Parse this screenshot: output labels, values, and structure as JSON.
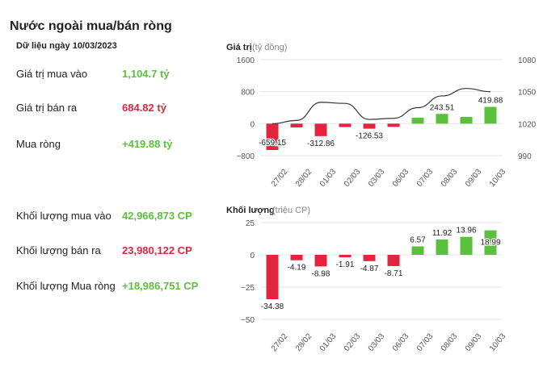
{
  "page": {
    "title": "Nước ngoài mua/bán ròng",
    "date_label": "Dữ liệu ngày 10/03/2023"
  },
  "stats": [
    {
      "label": "Giá trị mua vào",
      "value": "1,104.7 tỷ",
      "color": "#5bc13c"
    },
    {
      "label": "Giá trị bán ra",
      "value": "684.82 tỷ",
      "color": "#e2243f"
    },
    {
      "label": "Mua ròng",
      "value": "+419.88 tỷ",
      "color": "#5bc13c"
    },
    {
      "label": "Khối lượng mua vào",
      "value": "42,966,873 CP",
      "color": "#5bc13c"
    },
    {
      "label": "Khối lượng bán ra",
      "value": "23,980,122 CP",
      "color": "#e2243f"
    },
    {
      "label": "Khối lượng Mua ròng",
      "value": "+18,986,751 CP",
      "color": "#5bc13c"
    }
  ],
  "colors": {
    "positive": "#5bc13c",
    "negative": "#e2243f",
    "line": "#333333",
    "grid": "#e6e6e6"
  },
  "chart_data": [
    {
      "type": "bar",
      "title": "Giá trị",
      "unit": "(tỷ đồng)",
      "categories": [
        "27/02",
        "28/02",
        "01/03",
        "02/03",
        "03/03",
        "06/03",
        "07/03",
        "08/03",
        "09/03",
        "10/03"
      ],
      "values": [
        -659.15,
        -95,
        -312.86,
        -85,
        -126.53,
        -80,
        150,
        243.51,
        170,
        419.88
      ],
      "data_labels": [
        "-659.15",
        "",
        "-312.86",
        "",
        "-126.53",
        "",
        "",
        "243.51",
        "",
        "419.88"
      ],
      "ylim": [
        -800,
        1600
      ],
      "yticks": [
        -800,
        0,
        800,
        1600
      ],
      "ytick_labels": [
        "−800",
        "0",
        "800",
        "1600"
      ],
      "secondary_series": {
        "type": "line",
        "values": [
          1020,
          1023,
          1040,
          1039,
          1024,
          1025,
          1035,
          1046,
          1053,
          1050
        ],
        "ylim": [
          990,
          1080
        ],
        "yticks": [
          990,
          1020,
          1050,
          1080
        ],
        "ytick_labels": [
          "990",
          "1020",
          "1050",
          "1080"
        ]
      },
      "grid": true
    },
    {
      "type": "bar",
      "title": "Khối lượng",
      "unit": "(triệu CP)",
      "categories": [
        "27/02",
        "28/02",
        "01/03",
        "02/03",
        "03/03",
        "06/03",
        "07/03",
        "08/03",
        "09/03",
        "10/03"
      ],
      "values": [
        -34.38,
        -4.19,
        -8.98,
        -1.91,
        -4.87,
        -8.71,
        6.57,
        11.92,
        13.96,
        18.99
      ],
      "data_labels": [
        "-34.38",
        "-4.19",
        "-8.98",
        "-1.91",
        "-4.87",
        "-8.71",
        "6.57",
        "11.92",
        "13.96",
        "18.99"
      ],
      "ylim": [
        -50,
        25
      ],
      "yticks": [
        -50,
        -25,
        0,
        25
      ],
      "ytick_labels": [
        "−50",
        "−25",
        "0",
        "25"
      ],
      "grid": true
    }
  ]
}
